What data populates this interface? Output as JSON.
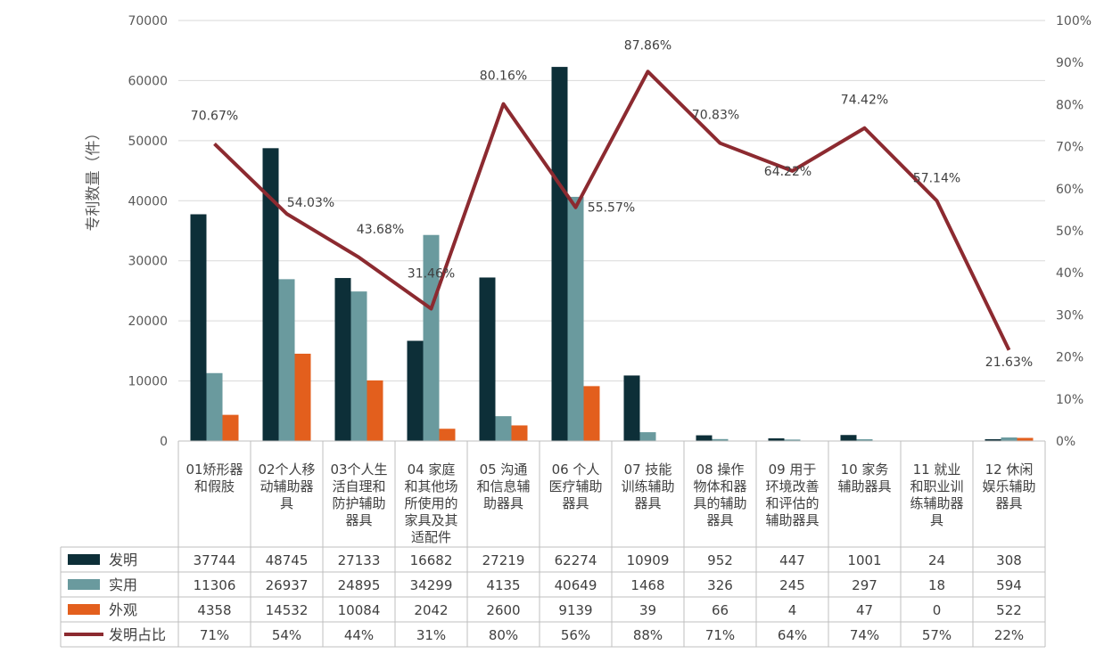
{
  "chart_data": {
    "type": "bar",
    "ylabel": "专利数量（件）",
    "ylim": [
      0,
      70000
    ],
    "y2lim": [
      0,
      1
    ],
    "y_ticks": [
      "0",
      "10000",
      "20000",
      "30000",
      "40000",
      "50000",
      "60000",
      "70000"
    ],
    "y2_ticks": [
      "0%",
      "10%",
      "20%",
      "30%",
      "40%",
      "50%",
      "60%",
      "70%",
      "80%",
      "90%",
      "100%"
    ],
    "categories": [
      [
        "01矫形器",
        "和假肢"
      ],
      [
        "02个人移",
        "动辅助器",
        "具"
      ],
      [
        "03个人生",
        "活自理和",
        "防护辅助",
        "器具"
      ],
      [
        "04 家庭",
        "和其他场",
        "所使用的",
        "家具及其",
        "适配件"
      ],
      [
        "05 沟通",
        "和信息辅",
        "助器具"
      ],
      [
        "06 个人",
        "医疗辅助",
        "器具"
      ],
      [
        "07 技能",
        "训练辅助",
        "器具"
      ],
      [
        "08 操作",
        "物体和器",
        "具的辅助",
        "器具"
      ],
      [
        "09 用于",
        "环境改善",
        "和评估的",
        "辅助器具"
      ],
      [
        "10 家务",
        "辅助器具"
      ],
      [
        "11 就业",
        "和职业训",
        "练辅助器",
        "具"
      ],
      [
        "12 休闲",
        "娱乐辅助",
        "器具"
      ]
    ],
    "series": [
      {
        "name": "发明",
        "kind": "bar",
        "color": "#0d2f38",
        "values": [
          37744,
          48745,
          27133,
          16682,
          27219,
          62274,
          10909,
          952,
          447,
          1001,
          24,
          308
        ],
        "table": [
          "37744",
          "48745",
          "27133",
          "16682",
          "27219",
          "62274",
          "10909",
          "952",
          "447",
          "1001",
          "24",
          "308"
        ]
      },
      {
        "name": "实用",
        "kind": "bar",
        "color": "#6a9a9e",
        "values": [
          11306,
          26937,
          24895,
          34299,
          4135,
          40649,
          1468,
          326,
          245,
          297,
          18,
          594
        ],
        "table": [
          "11306",
          "26937",
          "24895",
          "34299",
          "4135",
          "40649",
          "1468",
          "326",
          "245",
          "297",
          "18",
          "594"
        ]
      },
      {
        "name": "外观",
        "kind": "bar",
        "color": "#e35f1d",
        "values": [
          4358,
          14532,
          10084,
          2042,
          2600,
          9139,
          39,
          66,
          4,
          47,
          0,
          522
        ],
        "table": [
          "4358",
          "14532",
          "10084",
          "2042",
          "2600",
          "9139",
          "39",
          "66",
          "4",
          "47",
          "0",
          "522"
        ]
      },
      {
        "name": "发明占比",
        "kind": "line",
        "axis": "right",
        "color": "#8c2a30",
        "values": [
          0.7067,
          0.5403,
          0.4368,
          0.3146,
          0.8016,
          0.5557,
          0.8786,
          0.7083,
          0.6422,
          0.7442,
          0.5714,
          0.2163
        ],
        "labels": [
          "70.67%",
          "54.03%",
          "43.68%",
          "31.46%",
          "80.16%",
          "55.57%",
          "87.86%",
          "70.83%",
          "64.22%",
          "74.42%",
          "57.14%",
          "21.63%"
        ],
        "table": [
          "71%",
          "54%",
          "44%",
          "31%",
          "80%",
          "56%",
          "88%",
          "71%",
          "64%",
          "74%",
          "57%",
          "22%"
        ]
      }
    ]
  }
}
